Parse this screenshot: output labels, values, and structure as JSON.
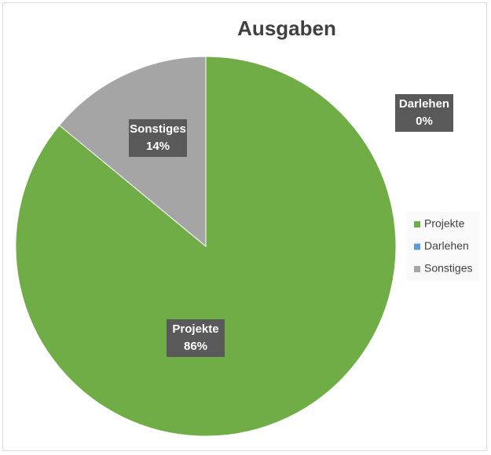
{
  "chart_data": {
    "type": "pie",
    "title": "Ausgaben",
    "categories": [
      "Projekte",
      "Darlehen",
      "Sonstiges"
    ],
    "values": [
      86,
      0,
      14
    ],
    "value_labels": [
      "86%",
      "0%",
      "14%"
    ],
    "colors": [
      "#70ad47",
      "#5b9bd5",
      "#a5a5a5"
    ],
    "legend": "right"
  }
}
